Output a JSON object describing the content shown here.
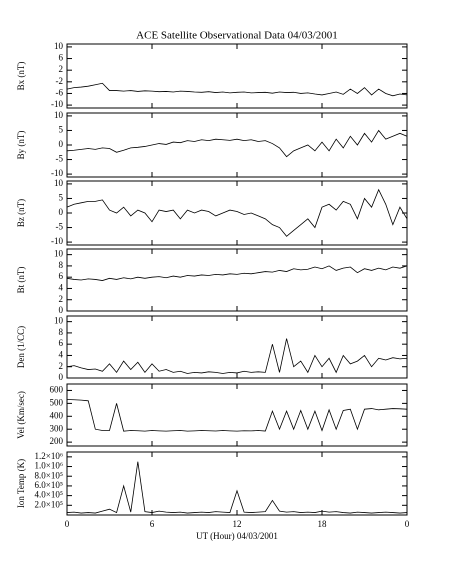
{
  "chart_data": [
    {
      "type": "line",
      "title": "ACE Satellite Observational Data   04/03/2001",
      "y_label": "Bx (nT)",
      "x": [
        0,
        0.5,
        1,
        1.5,
        2,
        2.5,
        3,
        3.5,
        4,
        4.5,
        5,
        5.5,
        6,
        6.5,
        7,
        7.5,
        8,
        8.5,
        9,
        9.5,
        10,
        10.5,
        11,
        11.5,
        12,
        12.5,
        13,
        13.5,
        14,
        14.5,
        15,
        15.5,
        16,
        16.5,
        17,
        17.5,
        18,
        18.5,
        19,
        19.5,
        20,
        20.5,
        21,
        21.5,
        22,
        22.5,
        23,
        23.5,
        24
      ],
      "values": [
        -4.5,
        -4,
        -3.8,
        -3.5,
        -3,
        -2.5,
        -5,
        -5,
        -5.2,
        -5,
        -5.3,
        -5.1,
        -5.2,
        -5.4,
        -5.3,
        -5.5,
        -5.2,
        -5.3,
        -5.5,
        -5.6,
        -5.4,
        -5.7,
        -5.5,
        -5.8,
        -5.6,
        -5.5,
        -5.8,
        -5.7,
        -5.6,
        -5.9,
        -5.5,
        -5.7,
        -5.6,
        -6,
        -5.8,
        -6.2,
        -6.5,
        -6,
        -5.5,
        -6.3,
        -4.5,
        -6,
        -4,
        -6.5,
        -4.5,
        -6,
        -6.8,
        -6.2,
        -6.5
      ],
      "color": "#000000",
      "xlim": [
        0,
        24
      ],
      "xticks": [
        0,
        6,
        12,
        18,
        {
          "value": 24,
          "label": "0"
        }
      ],
      "ylim": [
        -11,
        11
      ],
      "yticks": [
        -10,
        -6,
        -2,
        2,
        6,
        10
      ]
    },
    {
      "type": "line",
      "y_label": "By (nT)",
      "x": [
        0,
        0.5,
        1,
        1.5,
        2,
        2.5,
        3,
        3.5,
        4,
        4.5,
        5,
        5.5,
        6,
        6.5,
        7,
        7.5,
        8,
        8.5,
        9,
        9.5,
        10,
        10.5,
        11,
        11.5,
        12,
        12.5,
        13,
        13.5,
        14,
        14.5,
        15,
        15.5,
        16,
        16.5,
        17,
        17.5,
        18,
        18.5,
        19,
        19.5,
        20,
        20.5,
        21,
        21.5,
        22,
        22.5,
        23,
        23.5,
        24
      ],
      "values": [
        -2,
        -1.8,
        -1.5,
        -1.2,
        -1.5,
        -1,
        -1.2,
        -2.5,
        -1.8,
        -1,
        -0.8,
        -0.5,
        0,
        0.5,
        0.2,
        1,
        0.8,
        1.5,
        1.2,
        1.8,
        1.5,
        2,
        1.8,
        1.6,
        2,
        1.5,
        1.8,
        1.2,
        1.5,
        0.5,
        -1,
        -4,
        -2,
        -1,
        0,
        -2,
        1,
        -2,
        2,
        -1,
        3,
        0,
        4,
        1,
        5,
        2,
        3,
        4,
        3
      ],
      "color": "#000000",
      "xlim": [
        0,
        24
      ],
      "xticks": [
        0,
        6,
        12,
        18,
        {
          "value": 24,
          "label": "0"
        }
      ],
      "ylim": [
        -11,
        11
      ],
      "yticks": [
        -10,
        -5,
        0,
        5,
        10
      ]
    },
    {
      "type": "line",
      "y_label": "Bz (nT)",
      "x": [
        0,
        0.5,
        1,
        1.5,
        2,
        2.5,
        3,
        3.5,
        4,
        4.5,
        5,
        5.5,
        6,
        6.5,
        7,
        7.5,
        8,
        8.5,
        9,
        9.5,
        10,
        10.5,
        11,
        11.5,
        12,
        12.5,
        13,
        13.5,
        14,
        14.5,
        15,
        15.5,
        16,
        16.5,
        17,
        17.5,
        18,
        18.5,
        19,
        19.5,
        20,
        20.5,
        21,
        21.5,
        22,
        22.5,
        23,
        23.5,
        24
      ],
      "values": [
        2,
        3,
        3.5,
        4,
        4,
        4.5,
        1,
        0,
        2,
        -1,
        1,
        0,
        -3,
        1,
        0.5,
        1,
        -2,
        1,
        0,
        1,
        0.5,
        -1,
        0,
        1,
        0.5,
        -0.5,
        0,
        -1,
        -2,
        -4,
        -5,
        -8,
        -6,
        -4,
        -2,
        -5,
        2,
        3,
        1,
        4,
        3,
        -2,
        5,
        2,
        8,
        3,
        -4,
        2,
        -2
      ],
      "color": "#000000",
      "xlim": [
        0,
        24
      ],
      "xticks": [
        0,
        6,
        12,
        18,
        {
          "value": 24,
          "label": "0"
        }
      ],
      "ylim": [
        -11,
        11
      ],
      "yticks": [
        -10,
        -5,
        0,
        5,
        10
      ]
    },
    {
      "type": "line",
      "y_label": "Bt (nT)",
      "x": [
        0,
        0.5,
        1,
        1.5,
        2,
        2.5,
        3,
        3.5,
        4,
        4.5,
        5,
        5.5,
        6,
        6.5,
        7,
        7.5,
        8,
        8.5,
        9,
        9.5,
        10,
        10.5,
        11,
        11.5,
        12,
        12.5,
        13,
        13.5,
        14,
        14.5,
        15,
        15.5,
        16,
        16.5,
        17,
        17.5,
        18,
        18.5,
        19,
        19.5,
        20,
        20.5,
        21,
        21.5,
        22,
        22.5,
        23,
        23.5,
        24
      ],
      "values": [
        5.8,
        5.6,
        5.5,
        5.7,
        5.6,
        5.4,
        5.8,
        5.6,
        5.9,
        5.7,
        6,
        5.8,
        6,
        6.1,
        5.9,
        6.2,
        6,
        6.3,
        6.2,
        6.4,
        6.3,
        6.5,
        6.4,
        6.6,
        6.5,
        6.7,
        6.6,
        6.8,
        7,
        6.9,
        7.2,
        7,
        7.5,
        7.3,
        7.4,
        7.8,
        7.5,
        8,
        7.2,
        7.6,
        7.8,
        6.8,
        7.5,
        7.2,
        7.6,
        7.3,
        7.8,
        7.6,
        8
      ],
      "color": "#000000",
      "xlim": [
        0,
        24
      ],
      "xticks": [
        0,
        6,
        12,
        18,
        {
          "value": 24,
          "label": "0"
        }
      ],
      "ylim": [
        0,
        11
      ],
      "yticks": [
        0,
        2,
        4,
        6,
        8,
        10
      ]
    },
    {
      "type": "line",
      "y_label": "Den (1/CC)",
      "x": [
        0,
        0.5,
        1,
        1.5,
        2,
        2.5,
        3,
        3.5,
        4,
        4.5,
        5,
        5.5,
        6,
        6.5,
        7,
        7.5,
        8,
        8.5,
        9,
        9.5,
        10,
        10.5,
        11,
        11.5,
        12,
        12.5,
        13,
        13.5,
        14,
        14.5,
        15,
        15.5,
        16,
        16.5,
        17,
        17.5,
        18,
        18.5,
        19,
        19.5,
        20,
        20.5,
        21,
        21.5,
        22,
        22.5,
        23,
        23.5,
        24
      ],
      "values": [
        2,
        2.2,
        1.8,
        1.5,
        1.6,
        1.2,
        2.5,
        1,
        3,
        1.5,
        2.8,
        1,
        2.5,
        1.2,
        1.5,
        1,
        1.2,
        0.8,
        1,
        0.9,
        1.1,
        1,
        0.8,
        1,
        0.9,
        1.2,
        1,
        1.1,
        1,
        6,
        1,
        7,
        2,
        3,
        1,
        4,
        2,
        3.5,
        1,
        4,
        2.5,
        3,
        4,
        2,
        3.5,
        3.2,
        3.6,
        3.4,
        3.5
      ],
      "color": "#000000",
      "xlim": [
        0,
        24
      ],
      "xticks": [
        0,
        6,
        12,
        18,
        {
          "value": 24,
          "label": "0"
        }
      ],
      "ylim": [
        0,
        11
      ],
      "yticks": [
        0,
        2,
        4,
        6,
        8,
        10
      ]
    },
    {
      "type": "line",
      "y_label": "Vel (Km/sec)",
      "x": [
        0,
        0.5,
        1,
        1.5,
        2,
        2.5,
        3,
        3.5,
        4,
        4.5,
        5,
        5.5,
        6,
        6.5,
        7,
        7.5,
        8,
        8.5,
        9,
        9.5,
        10,
        10.5,
        11,
        11.5,
        12,
        12.5,
        13,
        13.5,
        14,
        14.5,
        15,
        15.5,
        16,
        16.5,
        17,
        17.5,
        18,
        18.5,
        19,
        19.5,
        20,
        20.5,
        21,
        21.5,
        22,
        22.5,
        23,
        23.5,
        24
      ],
      "values": [
        530,
        528,
        525,
        520,
        300,
        290,
        290,
        500,
        285,
        290,
        288,
        285,
        290,
        287,
        285,
        288,
        290,
        285,
        287,
        290,
        288,
        286,
        290,
        287,
        285,
        288,
        287,
        290,
        286,
        440,
        300,
        440,
        300,
        445,
        300,
        440,
        290,
        450,
        300,
        445,
        455,
        300,
        455,
        460,
        450,
        455,
        460,
        458,
        455
      ],
      "color": "#000000",
      "xlim": [
        0,
        24
      ],
      "xticks": [
        0,
        6,
        12,
        18,
        {
          "value": 24,
          "label": "0"
        }
      ],
      "ylim": [
        170,
        650
      ],
      "yticks": [
        200,
        300,
        400,
        500,
        600
      ]
    },
    {
      "type": "line",
      "y_label": "Ion Temp (K)",
      "x_label": "UT (Hour)  04/03/2001",
      "x": [
        0,
        0.5,
        1,
        1.5,
        2,
        2.5,
        3,
        3.5,
        4,
        4.5,
        5,
        5.5,
        6,
        6.5,
        7,
        7.5,
        8,
        8.5,
        9,
        9.5,
        10,
        10.5,
        11,
        11.5,
        12,
        12.5,
        13,
        13.5,
        14,
        14.5,
        15,
        15.5,
        16,
        16.5,
        17,
        17.5,
        18,
        18.5,
        19,
        19.5,
        20,
        20.5,
        21,
        21.5,
        22,
        22.5,
        23,
        23.5,
        24
      ],
      "values": [
        50000,
        60000,
        40000,
        50000,
        40000,
        80000,
        120000,
        50000,
        600000,
        60000,
        1100000,
        70000,
        50000,
        80000,
        60000,
        50000,
        60000,
        40000,
        50000,
        60000,
        50000,
        70000,
        60000,
        50000,
        500000,
        60000,
        50000,
        60000,
        70000,
        300000,
        80000,
        60000,
        70000,
        50000,
        60000,
        50000,
        80000,
        60000,
        70000,
        50000,
        40000,
        60000,
        50000,
        40000,
        50000,
        60000,
        50000,
        40000,
        50000
      ],
      "color": "#000000",
      "xlim": [
        0,
        24
      ],
      "xticks": [
        0,
        6,
        12,
        18,
        {
          "value": 24,
          "label": "0"
        }
      ],
      "ylim": [
        0,
        1300000
      ],
      "yticks": [
        {
          "value": 200000,
          "label": "2.0×10⁵"
        },
        {
          "value": 400000,
          "label": "4.0×10⁵"
        },
        {
          "value": 600000,
          "label": "6.0×10⁵"
        },
        {
          "value": 800000,
          "label": "8.0×10⁵"
        },
        {
          "value": 1000000,
          "label": "1.0×10⁶"
        },
        {
          "value": 1200000,
          "label": "1.2×10⁶"
        }
      ]
    }
  ]
}
